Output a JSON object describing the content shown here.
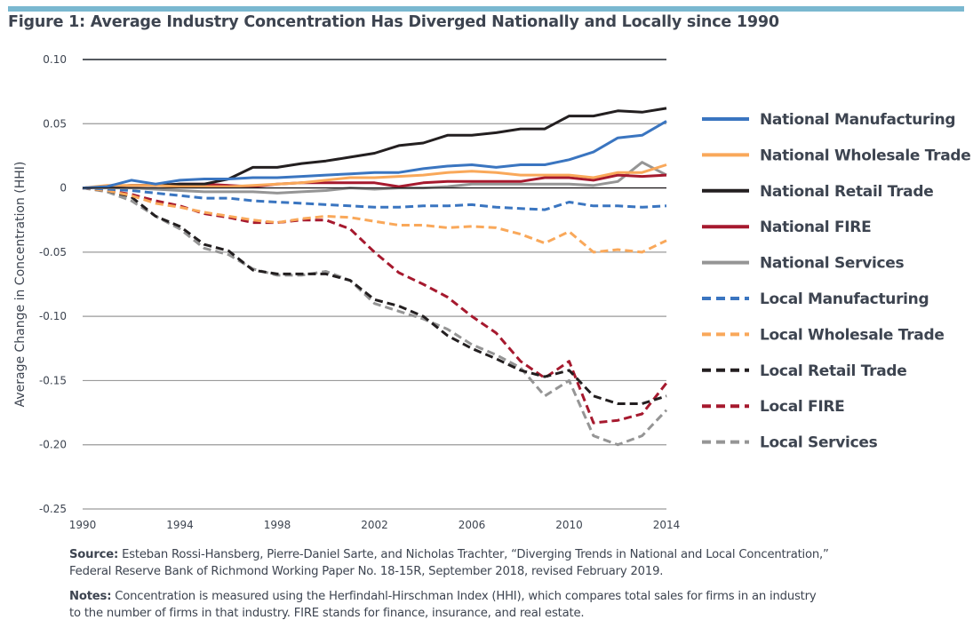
{
  "title": "Figure 1: Average Industry Concentration Has Diverged Nationally and Locally since 1990",
  "footer": {
    "source_label": "Source:",
    "source_line1": " Esteban Rossi-Hansberg, Pierre-Daniel Sarte, and Nicholas Trachter, “Diverging Trends in National and Local Concentration,”",
    "source_line2": "Federal Reserve Bank of Richmond Working Paper No. 18-15R, September 2018, revised February 2019.",
    "notes_label": "Notes:",
    "notes_line1": " Concentration is measured using the Herfindahl-Hirschman Index (HHI), which compares total sales for firms in an industry",
    "notes_line2": "to the number of firms in that industry. FIRE stands for finance, insurance, and real estate."
  },
  "chart_data": {
    "type": "line",
    "title": "Figure 1: Average Industry Concentration Has Diverged Nationally and Locally since 1990",
    "xlabel": "",
    "ylabel": "Average Change in Concentration (HHI)",
    "xlim": [
      1990,
      2014
    ],
    "ylim": [
      -0.25,
      0.1
    ],
    "x_ticks": [
      "1990",
      "1994",
      "1998",
      "2002",
      "2006",
      "2010",
      "2014"
    ],
    "x_tick_values": [
      1990,
      1994,
      1998,
      2002,
      2006,
      2010,
      2014
    ],
    "y_ticks": [
      "0.10",
      "0.05",
      "0",
      "-0.05",
      "-0.10",
      "-0.15",
      "-0.20",
      "-0.25"
    ],
    "y_tick_values": [
      0.1,
      0.05,
      0,
      -0.05,
      -0.1,
      -0.15,
      -0.2,
      -0.25
    ],
    "grid": "horizontal",
    "legend_position": "right",
    "x": [
      1990,
      1991,
      1992,
      1993,
      1994,
      1995,
      1996,
      1997,
      1998,
      1999,
      2000,
      2001,
      2002,
      2003,
      2004,
      2005,
      2006,
      2007,
      2008,
      2009,
      2010,
      2011,
      2012,
      2013,
      2014
    ],
    "series": [
      {
        "name": "National Manufacturing",
        "color": "#3a75c0",
        "dash": false,
        "values": [
          0,
          0.001,
          0.006,
          0.003,
          0.006,
          0.007,
          0.007,
          0.008,
          0.008,
          0.009,
          0.01,
          0.011,
          0.012,
          0.012,
          0.015,
          0.017,
          0.018,
          0.016,
          0.018,
          0.018,
          0.022,
          0.028,
          0.039,
          0.041,
          0.052
        ]
      },
      {
        "name": "National Wholesale Trade",
        "color": "#f9a85a",
        "dash": false,
        "values": [
          0,
          0.002,
          0.002,
          0.002,
          0.001,
          0.001,
          0.001,
          0.002,
          0.003,
          0.004,
          0.006,
          0.008,
          0.008,
          0.009,
          0.01,
          0.012,
          0.013,
          0.012,
          0.01,
          0.01,
          0.01,
          0.008,
          0.012,
          0.012,
          0.018
        ]
      },
      {
        "name": "National Retail Trade",
        "color": "#231f20",
        "dash": false,
        "values": [
          0,
          0.001,
          0.002,
          0.002,
          0.003,
          0.003,
          0.007,
          0.016,
          0.016,
          0.019,
          0.021,
          0.024,
          0.027,
          0.033,
          0.035,
          0.041,
          0.041,
          0.043,
          0.046,
          0.046,
          0.056,
          0.056,
          0.06,
          0.059,
          0.062
        ]
      },
      {
        "name": "National FIRE",
        "color": "#a6192e",
        "dash": false,
        "values": [
          0,
          0.001,
          0.002,
          0.002,
          0.003,
          0.003,
          0.002,
          0.001,
          0.003,
          0.004,
          0.004,
          0.004,
          0.004,
          0.001,
          0.004,
          0.005,
          0.005,
          0.005,
          0.005,
          0.008,
          0.008,
          0.006,
          0.01,
          0.009,
          0.01
        ]
      },
      {
        "name": "National Services",
        "color": "#959595",
        "dash": false,
        "values": [
          0,
          0,
          0,
          -0.001,
          -0.002,
          -0.003,
          -0.003,
          -0.003,
          -0.004,
          -0.003,
          -0.002,
          0,
          -0.001,
          0,
          0,
          0.001,
          0.003,
          0.003,
          0.003,
          0.003,
          0.003,
          0.002,
          0.005,
          0.02,
          0.01
        ]
      },
      {
        "name": "Local Manufacturing",
        "color": "#3a75c0",
        "dash": true,
        "values": [
          0,
          -0.001,
          -0.002,
          -0.004,
          -0.006,
          -0.008,
          -0.008,
          -0.01,
          -0.011,
          -0.012,
          -0.013,
          -0.014,
          -0.015,
          -0.015,
          -0.014,
          -0.014,
          -0.013,
          -0.015,
          -0.016,
          -0.017,
          -0.011,
          -0.014,
          -0.014,
          -0.015,
          -0.014
        ]
      },
      {
        "name": "Local Wholesale Trade",
        "color": "#f9a85a",
        "dash": true,
        "values": [
          0,
          -0.002,
          -0.006,
          -0.012,
          -0.015,
          -0.019,
          -0.022,
          -0.025,
          -0.027,
          -0.024,
          -0.022,
          -0.023,
          -0.026,
          -0.029,
          -0.029,
          -0.031,
          -0.03,
          -0.031,
          -0.036,
          -0.043,
          -0.034,
          -0.05,
          -0.048,
          -0.05,
          -0.041
        ]
      },
      {
        "name": "Local Retail Trade",
        "color": "#231f20",
        "dash": true,
        "values": [
          0,
          -0.002,
          -0.007,
          -0.022,
          -0.03,
          -0.044,
          -0.049,
          -0.064,
          -0.067,
          -0.067,
          -0.067,
          -0.072,
          -0.087,
          -0.092,
          -0.1,
          -0.115,
          -0.125,
          -0.133,
          -0.142,
          -0.147,
          -0.142,
          -0.162,
          -0.168,
          -0.168,
          -0.162
        ]
      },
      {
        "name": "Local FIRE",
        "color": "#a6192e",
        "dash": true,
        "values": [
          0,
          -0.002,
          -0.005,
          -0.01,
          -0.014,
          -0.02,
          -0.023,
          -0.027,
          -0.027,
          -0.025,
          -0.025,
          -0.032,
          -0.05,
          -0.066,
          -0.075,
          -0.085,
          -0.1,
          -0.113,
          -0.135,
          -0.148,
          -0.135,
          -0.183,
          -0.181,
          -0.176,
          -0.152
        ]
      },
      {
        "name": "Local Services",
        "color": "#959595",
        "dash": true,
        "values": [
          0,
          -0.003,
          -0.01,
          -0.022,
          -0.032,
          -0.047,
          -0.052,
          -0.063,
          -0.068,
          -0.068,
          -0.065,
          -0.072,
          -0.09,
          -0.096,
          -0.102,
          -0.11,
          -0.122,
          -0.13,
          -0.14,
          -0.162,
          -0.15,
          -0.193,
          -0.2,
          -0.193,
          -0.173
        ]
      }
    ]
  }
}
